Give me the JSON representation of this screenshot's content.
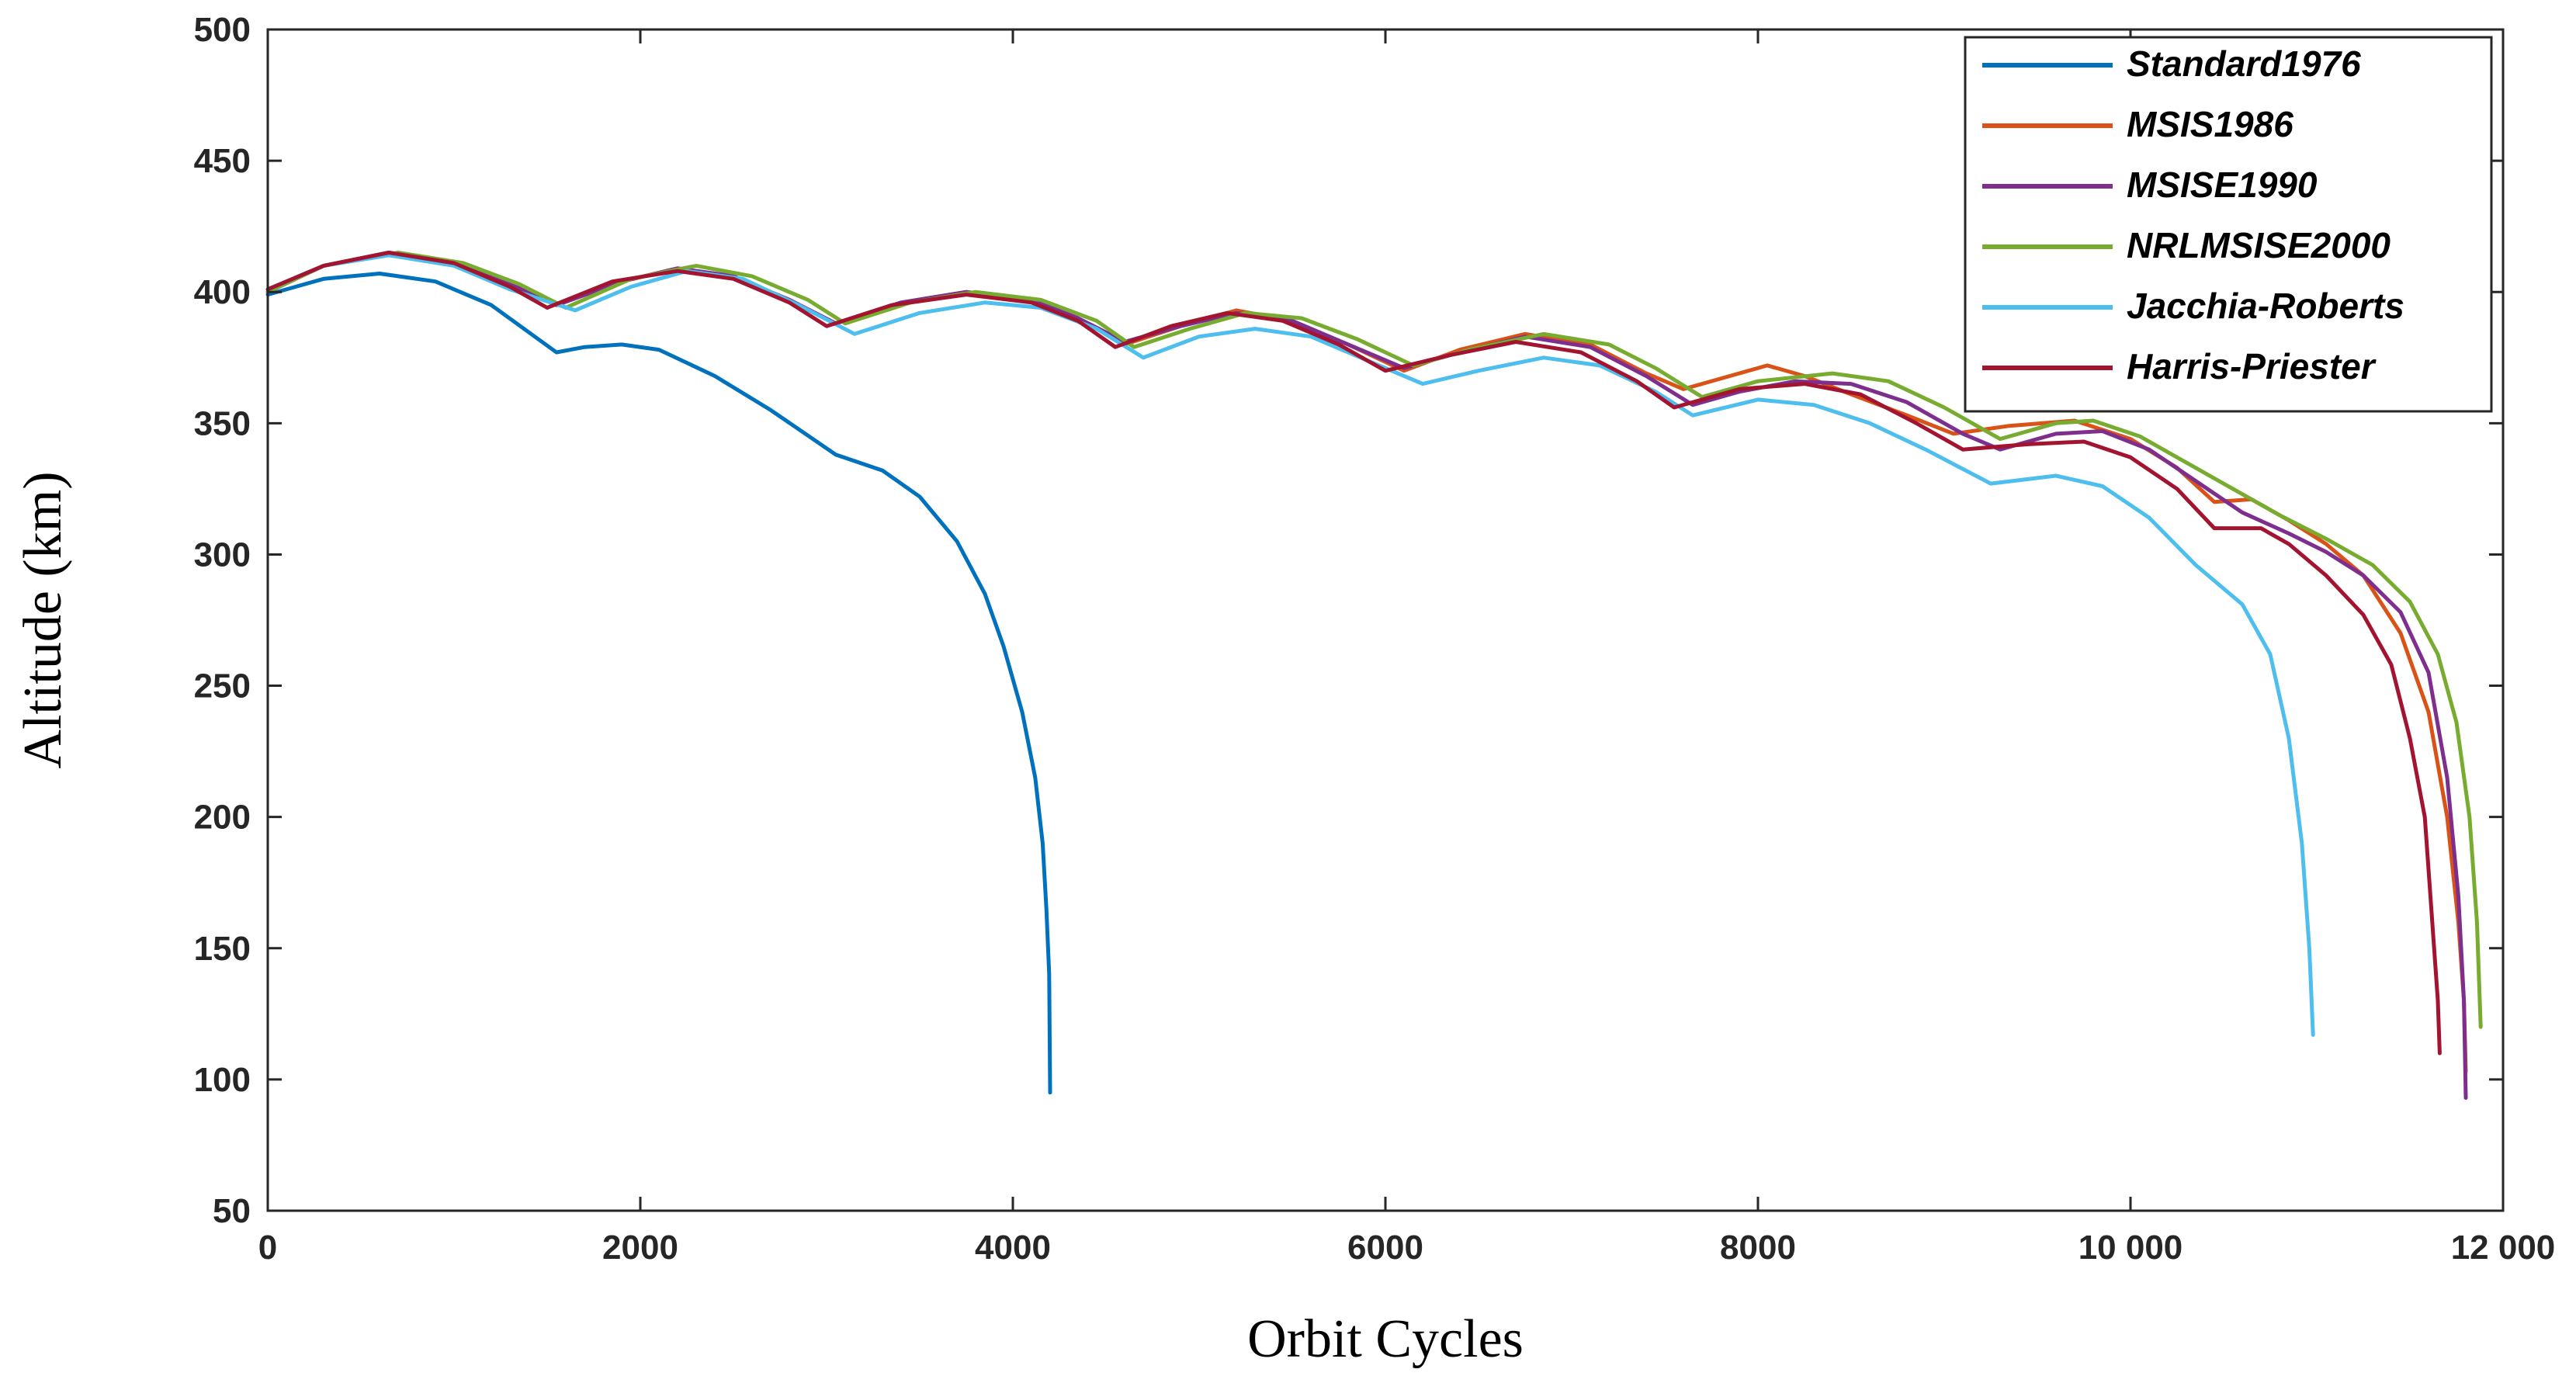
{
  "chart_data": {
    "type": "line",
    "title": "",
    "xlabel": "Orbit Cycles",
    "ylabel": "Altitude (km)",
    "xlim": [
      0,
      12000
    ],
    "ylim": [
      50,
      500
    ],
    "xticks": [
      0,
      2000,
      4000,
      6000,
      8000,
      10000,
      12000
    ],
    "xtick_labels": [
      "0",
      "2000",
      "4000",
      "6000",
      "8000",
      "10 000",
      "12 000"
    ],
    "yticks": [
      50,
      100,
      150,
      200,
      250,
      300,
      350,
      400,
      450,
      500
    ],
    "ytick_labels": [
      "50",
      "100",
      "150",
      "200",
      "250",
      "300",
      "350",
      "400",
      "450",
      "500"
    ],
    "grid": false,
    "legend_position": "top-right",
    "series": [
      {
        "name": "Standard1976",
        "color": "#0072BD",
        "points": [
          [
            0,
            399
          ],
          [
            300,
            405
          ],
          [
            600,
            407
          ],
          [
            900,
            404
          ],
          [
            1200,
            395
          ],
          [
            1550,
            377
          ],
          [
            1700,
            379
          ],
          [
            1900,
            380
          ],
          [
            2100,
            378
          ],
          [
            2400,
            368
          ],
          [
            2700,
            355
          ],
          [
            3050,
            338
          ],
          [
            3300,
            332
          ],
          [
            3500,
            322
          ],
          [
            3700,
            305
          ],
          [
            3850,
            285
          ],
          [
            3950,
            265
          ],
          [
            4050,
            240
          ],
          [
            4120,
            215
          ],
          [
            4160,
            190
          ],
          [
            4180,
            165
          ],
          [
            4195,
            140
          ],
          [
            4200,
            95
          ]
        ]
      },
      {
        "name": "MSIS1986",
        "color": "#D95319",
        "points": [
          [
            0,
            400
          ],
          [
            300,
            410
          ],
          [
            650,
            415
          ],
          [
            1000,
            411
          ],
          [
            1300,
            403
          ],
          [
            1550,
            395
          ],
          [
            1900,
            404
          ],
          [
            2200,
            409
          ],
          [
            2500,
            406
          ],
          [
            2800,
            397
          ],
          [
            3050,
            388
          ],
          [
            3400,
            396
          ],
          [
            3750,
            400
          ],
          [
            4100,
            397
          ],
          [
            4350,
            390
          ],
          [
            4600,
            380
          ],
          [
            4900,
            387
          ],
          [
            5200,
            393
          ],
          [
            5500,
            389
          ],
          [
            5800,
            380
          ],
          [
            6100,
            370
          ],
          [
            6400,
            378
          ],
          [
            6750,
            384
          ],
          [
            7100,
            380
          ],
          [
            7400,
            369
          ],
          [
            7600,
            363
          ],
          [
            8050,
            372
          ],
          [
            8250,
            368
          ],
          [
            8500,
            361
          ],
          [
            8800,
            353
          ],
          [
            9050,
            346
          ],
          [
            9350,
            349
          ],
          [
            9700,
            351
          ],
          [
            10000,
            344
          ],
          [
            10250,
            333
          ],
          [
            10450,
            320
          ],
          [
            10650,
            321
          ],
          [
            10850,
            313
          ],
          [
            11050,
            304
          ],
          [
            11250,
            292
          ],
          [
            11450,
            270
          ],
          [
            11600,
            240
          ],
          [
            11700,
            200
          ],
          [
            11760,
            160
          ],
          [
            11790,
            130
          ],
          [
            11800,
            103
          ]
        ]
      },
      {
        "name": "MSISE1990",
        "color": "#7E2F8E",
        "points": [
          [
            0,
            400
          ],
          [
            300,
            410
          ],
          [
            650,
            415
          ],
          [
            1000,
            411
          ],
          [
            1300,
            403
          ],
          [
            1550,
            395
          ],
          [
            1900,
            404
          ],
          [
            2200,
            409
          ],
          [
            2500,
            406
          ],
          [
            2800,
            397
          ],
          [
            3050,
            388
          ],
          [
            3400,
            396
          ],
          [
            3750,
            400
          ],
          [
            4100,
            397
          ],
          [
            4350,
            390
          ],
          [
            4600,
            381
          ],
          [
            4900,
            387
          ],
          [
            5200,
            392
          ],
          [
            5500,
            389
          ],
          [
            5800,
            380
          ],
          [
            6100,
            371
          ],
          [
            6400,
            377
          ],
          [
            6750,
            383
          ],
          [
            7100,
            379
          ],
          [
            7400,
            368
          ],
          [
            7650,
            357
          ],
          [
            7900,
            362
          ],
          [
            8200,
            366
          ],
          [
            8500,
            365
          ],
          [
            8800,
            358
          ],
          [
            9100,
            346
          ],
          [
            9300,
            340
          ],
          [
            9600,
            346
          ],
          [
            9850,
            347
          ],
          [
            10100,
            340
          ],
          [
            10350,
            328
          ],
          [
            10600,
            316
          ],
          [
            10850,
            308
          ],
          [
            11050,
            301
          ],
          [
            11250,
            292
          ],
          [
            11450,
            278
          ],
          [
            11600,
            255
          ],
          [
            11700,
            215
          ],
          [
            11760,
            170
          ],
          [
            11790,
            130
          ],
          [
            11800,
            93
          ]
        ]
      },
      {
        "name": "NRLMSISE2000",
        "color": "#77AC30",
        "points": [
          [
            0,
            400
          ],
          [
            300,
            410
          ],
          [
            700,
            415
          ],
          [
            1050,
            411
          ],
          [
            1350,
            403
          ],
          [
            1600,
            394
          ],
          [
            1950,
            405
          ],
          [
            2300,
            410
          ],
          [
            2600,
            406
          ],
          [
            2900,
            397
          ],
          [
            3100,
            388
          ],
          [
            3450,
            396
          ],
          [
            3800,
            400
          ],
          [
            4150,
            397
          ],
          [
            4450,
            389
          ],
          [
            4650,
            379
          ],
          [
            4950,
            386
          ],
          [
            5250,
            392
          ],
          [
            5550,
            390
          ],
          [
            5850,
            382
          ],
          [
            6150,
            372
          ],
          [
            6450,
            378
          ],
          [
            6850,
            384
          ],
          [
            7200,
            380
          ],
          [
            7450,
            371
          ],
          [
            7700,
            360
          ],
          [
            8000,
            366
          ],
          [
            8400,
            369
          ],
          [
            8700,
            366
          ],
          [
            9000,
            356
          ],
          [
            9300,
            344
          ],
          [
            9600,
            350
          ],
          [
            9800,
            351
          ],
          [
            10050,
            345
          ],
          [
            10300,
            335
          ],
          [
            10550,
            325
          ],
          [
            10800,
            315
          ],
          [
            11050,
            306
          ],
          [
            11300,
            296
          ],
          [
            11500,
            282
          ],
          [
            11650,
            262
          ],
          [
            11750,
            236
          ],
          [
            11820,
            200
          ],
          [
            11860,
            160
          ],
          [
            11880,
            120
          ]
        ]
      },
      {
        "name": "Jacchia-Roberts",
        "color": "#4DBEEE",
        "points": [
          [
            0,
            401
          ],
          [
            300,
            410
          ],
          [
            650,
            414
          ],
          [
            1000,
            410
          ],
          [
            1300,
            401
          ],
          [
            1650,
            393
          ],
          [
            1950,
            402
          ],
          [
            2250,
            408
          ],
          [
            2550,
            405
          ],
          [
            2850,
            395
          ],
          [
            3150,
            384
          ],
          [
            3500,
            392
          ],
          [
            3850,
            396
          ],
          [
            4150,
            394
          ],
          [
            4450,
            386
          ],
          [
            4700,
            375
          ],
          [
            5000,
            383
          ],
          [
            5300,
            386
          ],
          [
            5600,
            383
          ],
          [
            5900,
            374
          ],
          [
            6200,
            365
          ],
          [
            6500,
            370
          ],
          [
            6850,
            375
          ],
          [
            7150,
            372
          ],
          [
            7450,
            362
          ],
          [
            7650,
            353
          ],
          [
            8000,
            359
          ],
          [
            8300,
            357
          ],
          [
            8600,
            350
          ],
          [
            8900,
            340
          ],
          [
            9250,
            327
          ],
          [
            9600,
            330
          ],
          [
            9850,
            326
          ],
          [
            10100,
            314
          ],
          [
            10350,
            296
          ],
          [
            10600,
            281
          ],
          [
            10750,
            262
          ],
          [
            10850,
            230
          ],
          [
            10920,
            190
          ],
          [
            10960,
            150
          ],
          [
            10980,
            117
          ]
        ]
      },
      {
        "name": "Harris-Priester",
        "color": "#A2142F",
        "points": [
          [
            0,
            401
          ],
          [
            300,
            410
          ],
          [
            650,
            415
          ],
          [
            1000,
            411
          ],
          [
            1300,
            402
          ],
          [
            1500,
            394
          ],
          [
            1850,
            404
          ],
          [
            2200,
            408
          ],
          [
            2500,
            405
          ],
          [
            2800,
            396
          ],
          [
            3000,
            387
          ],
          [
            3350,
            395
          ],
          [
            3750,
            399
          ],
          [
            4100,
            396
          ],
          [
            4350,
            389
          ],
          [
            4550,
            379
          ],
          [
            4850,
            387
          ],
          [
            5150,
            392
          ],
          [
            5450,
            389
          ],
          [
            5750,
            380
          ],
          [
            6000,
            370
          ],
          [
            6350,
            376
          ],
          [
            6700,
            381
          ],
          [
            7050,
            377
          ],
          [
            7350,
            366
          ],
          [
            7550,
            356
          ],
          [
            7900,
            363
          ],
          [
            8250,
            365
          ],
          [
            8550,
            361
          ],
          [
            8850,
            350
          ],
          [
            9100,
            340
          ],
          [
            9450,
            342
          ],
          [
            9750,
            343
          ],
          [
            10000,
            337
          ],
          [
            10250,
            325
          ],
          [
            10450,
            310
          ],
          [
            10700,
            310
          ],
          [
            10850,
            304
          ],
          [
            11050,
            292
          ],
          [
            11250,
            277
          ],
          [
            11400,
            258
          ],
          [
            11500,
            230
          ],
          [
            11580,
            200
          ],
          [
            11620,
            160
          ],
          [
            11650,
            130
          ],
          [
            11660,
            110
          ]
        ]
      }
    ]
  }
}
